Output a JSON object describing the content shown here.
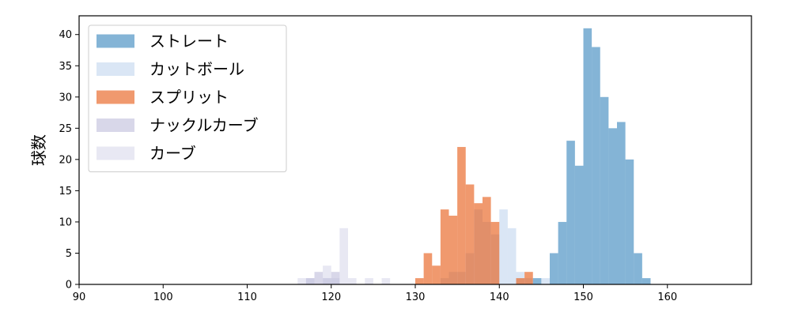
{
  "chart_data": {
    "type": "bar",
    "subtype": "overlapping-histogram",
    "title": "",
    "xlabel": "",
    "ylabel": "球数",
    "xlim": [
      90,
      170
    ],
    "ylim": [
      0,
      43
    ],
    "xticks": [
      90,
      100,
      110,
      120,
      130,
      140,
      150,
      160
    ],
    "yticks": [
      0,
      5,
      10,
      15,
      20,
      25,
      30,
      35,
      40
    ],
    "grid": false,
    "legend_position": "top-left",
    "bin_width": 1,
    "series": [
      {
        "name": "ストレート",
        "color": "#1f77b4",
        "alpha": 0.55,
        "bins": [
          {
            "x": 144,
            "count": 1
          },
          {
            "x": 146,
            "count": 5
          },
          {
            "x": 147,
            "count": 10
          },
          {
            "x": 148,
            "count": 23
          },
          {
            "x": 149,
            "count": 19
          },
          {
            "x": 150,
            "count": 41
          },
          {
            "x": 151,
            "count": 38
          },
          {
            "x": 152,
            "count": 30
          },
          {
            "x": 153,
            "count": 25
          },
          {
            "x": 154,
            "count": 26
          },
          {
            "x": 155,
            "count": 20
          },
          {
            "x": 156,
            "count": 5
          },
          {
            "x": 157,
            "count": 1
          }
        ]
      },
      {
        "name": "カットボール",
        "color": "#aec7e8",
        "alpha": 0.45,
        "bins": [
          {
            "x": 133,
            "count": 1
          },
          {
            "x": 134,
            "count": 2
          },
          {
            "x": 135,
            "count": 2
          },
          {
            "x": 136,
            "count": 5
          },
          {
            "x": 137,
            "count": 12
          },
          {
            "x": 138,
            "count": 10
          },
          {
            "x": 139,
            "count": 8
          },
          {
            "x": 140,
            "count": 12
          },
          {
            "x": 141,
            "count": 9
          },
          {
            "x": 142,
            "count": 2
          },
          {
            "x": 143,
            "count": 1
          },
          {
            "x": 145,
            "count": 1
          }
        ]
      },
      {
        "name": "スプリット",
        "color": "#e6550d",
        "alpha": 0.6,
        "bins": [
          {
            "x": 130,
            "count": 1
          },
          {
            "x": 131,
            "count": 5
          },
          {
            "x": 132,
            "count": 3
          },
          {
            "x": 133,
            "count": 12
          },
          {
            "x": 134,
            "count": 11
          },
          {
            "x": 135,
            "count": 22
          },
          {
            "x": 136,
            "count": 16
          },
          {
            "x": 137,
            "count": 13
          },
          {
            "x": 138,
            "count": 14
          },
          {
            "x": 139,
            "count": 10
          },
          {
            "x": 142,
            "count": 1
          },
          {
            "x": 143,
            "count": 2
          }
        ]
      },
      {
        "name": "ナックルカーブ",
        "color": "#9e9ac8",
        "alpha": 0.4,
        "bins": [
          {
            "x": 117,
            "count": 1
          },
          {
            "x": 118,
            "count": 2
          },
          {
            "x": 119,
            "count": 1
          },
          {
            "x": 120,
            "count": 2
          }
        ]
      },
      {
        "name": "カーブ",
        "color": "#bcbddc",
        "alpha": 0.35,
        "bins": [
          {
            "x": 116,
            "count": 1
          },
          {
            "x": 117,
            "count": 1
          },
          {
            "x": 119,
            "count": 3
          },
          {
            "x": 120,
            "count": 1
          },
          {
            "x": 121,
            "count": 9
          },
          {
            "x": 122,
            "count": 1
          },
          {
            "x": 124,
            "count": 1
          },
          {
            "x": 126,
            "count": 1
          }
        ]
      }
    ]
  }
}
